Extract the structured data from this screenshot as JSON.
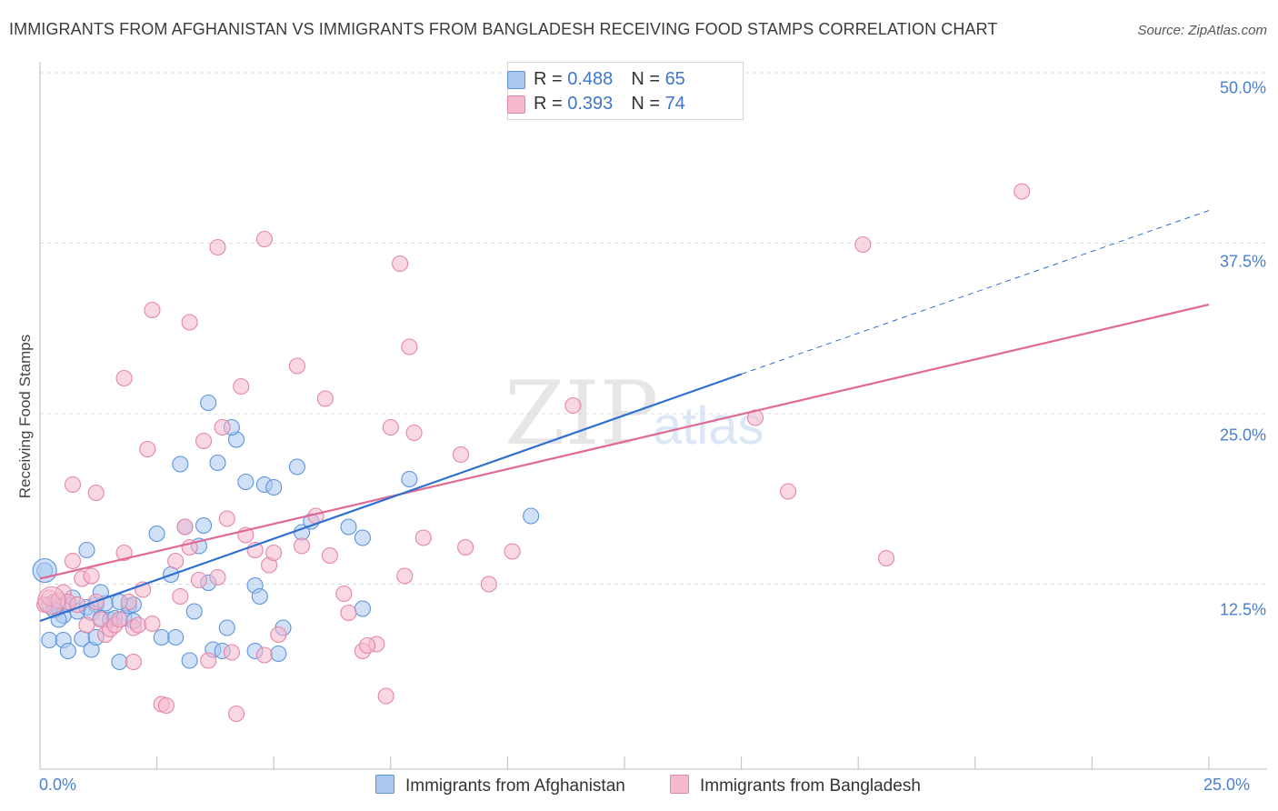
{
  "title": "IMMIGRANTS FROM AFGHANISTAN VS IMMIGRANTS FROM BANGLADESH RECEIVING FOOD STAMPS CORRELATION CHART",
  "source": "Source: ZipAtlas.com",
  "watermark": {
    "zip": "ZIP",
    "atlas": "atlas"
  },
  "legend": {
    "afghanistan": {
      "r_label": "R = ",
      "r_value": "0.488",
      "n_label": "N = ",
      "n_value": "65"
    },
    "bangladesh": {
      "r_label": "R = ",
      "r_value": "0.393",
      "n_label": "N = ",
      "n_value": "74"
    }
  },
  "bottom_legend": {
    "afghanistan": "Immigrants from Afghanistan",
    "bangladesh": "Immigrants from Bangladesh"
  },
  "colors": {
    "afghanistan_fill": "#a9c8f0",
    "afghanistan_stroke": "#5b93dc",
    "afghanistan_line": "#2f6fd0",
    "bangladesh_fill": "#f6b8cc",
    "bangladesh_stroke": "#e684a6",
    "bangladesh_line": "#e06a94",
    "tick_text": "#4a7fd0",
    "grid": "#dcdcdc"
  },
  "chart_data": {
    "type": "scatter",
    "xlabel": "",
    "ylabel": "Receiving Food Stamps",
    "xlim": [
      0,
      25
    ],
    "ylim": [
      0,
      50
    ],
    "x_tick_labels": [
      "0.0%",
      "25.0%"
    ],
    "y_tick_labels": [
      "12.5%",
      "25.0%",
      "37.5%",
      "50.0%"
    ],
    "y_ticks": [
      12.5,
      25.0,
      37.5,
      50.0
    ],
    "grid": "horizontal dashed",
    "legend_position": "top-center",
    "series": [
      {
        "name": "Immigrants from Afghanistan",
        "R": 0.488,
        "N": 65,
        "trend": {
          "x0": 0,
          "y0": 9.8,
          "x1": 15,
          "y1": 27.9,
          "dashed_to_x": 25,
          "dashed_to_y": 39.9
        },
        "points": [
          [
            0.1,
            13.5
          ],
          [
            0.2,
            11.0
          ],
          [
            0.3,
            11.2
          ],
          [
            0.4,
            10.8
          ],
          [
            0.2,
            8.4
          ],
          [
            0.5,
            10.2
          ],
          [
            0.6,
            11.0
          ],
          [
            0.3,
            10.6
          ],
          [
            0.4,
            9.9
          ],
          [
            0.7,
            11.5
          ],
          [
            0.8,
            10.5
          ],
          [
            1.0,
            10.8
          ],
          [
            1.2,
            11.0
          ],
          [
            1.1,
            10.4
          ],
          [
            0.5,
            8.4
          ],
          [
            0.6,
            7.6
          ],
          [
            0.9,
            8.5
          ],
          [
            1.1,
            7.7
          ],
          [
            1.2,
            8.6
          ],
          [
            1.3,
            10.0
          ],
          [
            1.5,
            9.9
          ],
          [
            1.4,
            11.1
          ],
          [
            1.6,
            10.0
          ],
          [
            1.8,
            10.0
          ],
          [
            1.9,
            10.9
          ],
          [
            2.0,
            11.0
          ],
          [
            1.7,
            11.2
          ],
          [
            2.0,
            9.8
          ],
          [
            1.0,
            15.0
          ],
          [
            1.3,
            11.9
          ],
          [
            2.5,
            16.2
          ],
          [
            2.6,
            8.6
          ],
          [
            2.8,
            13.2
          ],
          [
            3.0,
            21.3
          ],
          [
            2.9,
            8.6
          ],
          [
            3.1,
            16.7
          ],
          [
            3.3,
            10.5
          ],
          [
            3.4,
            15.3
          ],
          [
            3.5,
            16.8
          ],
          [
            3.6,
            12.6
          ],
          [
            3.7,
            7.7
          ],
          [
            3.8,
            21.4
          ],
          [
            3.9,
            7.6
          ],
          [
            4.0,
            9.3
          ],
          [
            4.2,
            23.1
          ],
          [
            4.4,
            20.0
          ],
          [
            4.6,
            12.4
          ],
          [
            4.7,
            11.6
          ],
          [
            4.8,
            19.8
          ],
          [
            5.0,
            19.6
          ],
          [
            5.2,
            9.3
          ],
          [
            5.5,
            21.1
          ],
          [
            5.6,
            16.3
          ],
          [
            5.8,
            17.1
          ],
          [
            6.6,
            16.7
          ],
          [
            6.9,
            15.9
          ],
          [
            3.2,
            6.9
          ],
          [
            4.6,
            7.6
          ],
          [
            3.6,
            25.8
          ],
          [
            4.1,
            24.0
          ],
          [
            5.1,
            7.4
          ],
          [
            6.9,
            10.7
          ],
          [
            1.7,
            6.8
          ],
          [
            7.9,
            20.2
          ],
          [
            10.5,
            17.5
          ]
        ]
      },
      {
        "name": "Immigrants from Bangladesh",
        "R": 0.393,
        "N": 74,
        "trend": {
          "x0": 0,
          "y0": 12.9,
          "x1": 25,
          "y1": 33.0
        },
        "points": [
          [
            0.1,
            11.0
          ],
          [
            0.2,
            11.5
          ],
          [
            0.4,
            11.3
          ],
          [
            0.5,
            11.9
          ],
          [
            0.6,
            11.2
          ],
          [
            0.7,
            14.2
          ],
          [
            0.8,
            11.0
          ],
          [
            0.9,
            12.9
          ],
          [
            1.0,
            9.5
          ],
          [
            1.1,
            13.1
          ],
          [
            1.2,
            11.2
          ],
          [
            1.3,
            9.9
          ],
          [
            1.4,
            8.8
          ],
          [
            1.5,
            9.2
          ],
          [
            1.6,
            9.5
          ],
          [
            1.7,
            9.9
          ],
          [
            0.7,
            19.8
          ],
          [
            1.2,
            19.2
          ],
          [
            1.8,
            14.8
          ],
          [
            1.8,
            27.6
          ],
          [
            1.9,
            11.2
          ],
          [
            2.0,
            9.3
          ],
          [
            2.0,
            6.8
          ],
          [
            2.1,
            9.5
          ],
          [
            2.2,
            12.1
          ],
          [
            2.3,
            22.4
          ],
          [
            2.4,
            9.6
          ],
          [
            2.4,
            32.6
          ],
          [
            2.6,
            3.7
          ],
          [
            2.7,
            3.6
          ],
          [
            2.9,
            14.2
          ],
          [
            3.0,
            11.6
          ],
          [
            3.1,
            16.7
          ],
          [
            3.2,
            15.2
          ],
          [
            3.2,
            31.7
          ],
          [
            3.4,
            12.8
          ],
          [
            3.5,
            23.0
          ],
          [
            3.6,
            6.9
          ],
          [
            3.8,
            13.0
          ],
          [
            3.8,
            37.2
          ],
          [
            3.9,
            24.0
          ],
          [
            4.0,
            17.3
          ],
          [
            4.1,
            7.5
          ],
          [
            4.2,
            3.0
          ],
          [
            4.3,
            27.0
          ],
          [
            4.4,
            16.1
          ],
          [
            4.6,
            15.0
          ],
          [
            4.8,
            37.8
          ],
          [
            4.9,
            13.9
          ],
          [
            5.0,
            14.8
          ],
          [
            5.1,
            8.8
          ],
          [
            5.5,
            28.5
          ],
          [
            5.6,
            15.3
          ],
          [
            5.9,
            17.5
          ],
          [
            6.1,
            26.1
          ],
          [
            6.2,
            14.6
          ],
          [
            6.5,
            11.8
          ],
          [
            6.6,
            10.4
          ],
          [
            6.9,
            7.6
          ],
          [
            7.2,
            8.1
          ],
          [
            7.4,
            4.3
          ],
          [
            7.5,
            24.0
          ],
          [
            7.7,
            36.0
          ],
          [
            7.8,
            13.1
          ],
          [
            7.9,
            29.9
          ],
          [
            8.0,
            23.6
          ],
          [
            8.2,
            15.9
          ],
          [
            9.0,
            22.0
          ],
          [
            9.1,
            15.2
          ],
          [
            9.6,
            12.5
          ],
          [
            10.1,
            14.9
          ],
          [
            11.4,
            25.6
          ],
          [
            15.3,
            24.7
          ],
          [
            16.0,
            19.3
          ]
        ],
        "extra_points": [
          [
            17.6,
            37.4
          ],
          [
            18.1,
            14.4
          ],
          [
            21.0,
            41.3
          ],
          [
            7.0,
            8.0
          ],
          [
            4.8,
            7.3
          ]
        ]
      }
    ]
  }
}
